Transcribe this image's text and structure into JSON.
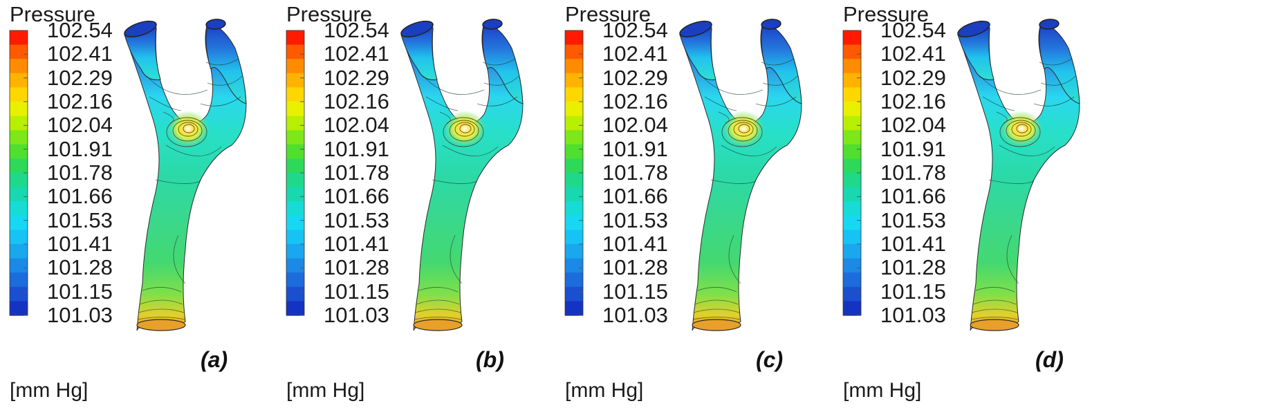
{
  "figure": {
    "legend": {
      "title": "Pressure",
      "unit": "[mm Hg]",
      "ticks": [
        "102.54",
        "102.41",
        "102.29",
        "102.16",
        "102.04",
        "101.91",
        "101.78",
        "101.66",
        "101.53",
        "101.41",
        "101.28",
        "101.15",
        "101.03"
      ],
      "colormap": [
        "#ff1a00",
        "#ff5a00",
        "#ff8c00",
        "#ffb300",
        "#ffd700",
        "#e8f000",
        "#b8ef00",
        "#7ee71a",
        "#4fdf2e",
        "#2ed95a",
        "#1fd98a",
        "#18d8b0",
        "#17dcd6",
        "#16d8f2",
        "#17c3f5",
        "#19a7ee",
        "#1b89e5",
        "#1c6cdc",
        "#1a50d0",
        "#1533c2"
      ]
    },
    "panels": [
      {
        "label": "(a)"
      },
      {
        "label": "(b)"
      },
      {
        "label": "(c)"
      },
      {
        "label": "(d)"
      }
    ]
  }
}
